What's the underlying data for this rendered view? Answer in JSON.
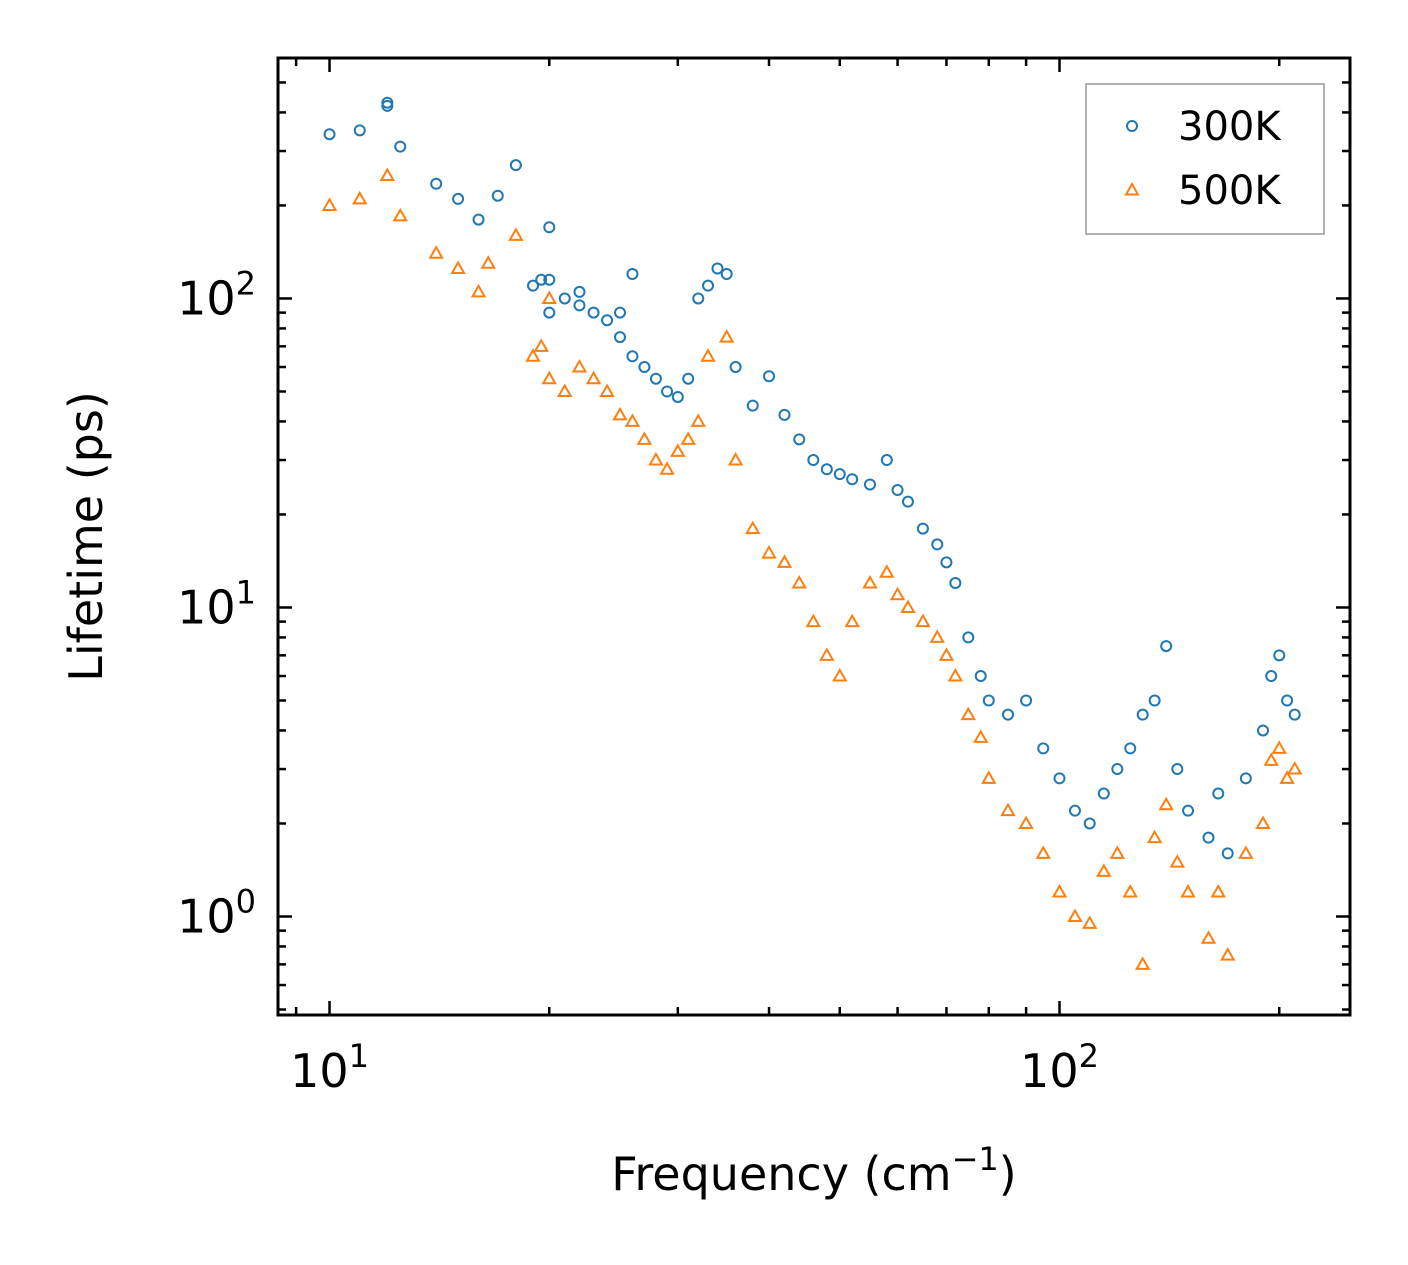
{
  "chart_data": {
    "type": "scatter",
    "title": "",
    "xlabel_base": "Frequency (cm",
    "xlabel_sup": "−1",
    "xlabel_end": ")",
    "ylabel": "Lifetime (ps)",
    "xscale": "log",
    "yscale": "log",
    "xlim": [
      8.5,
      250
    ],
    "ylim": [
      0.48,
      600
    ],
    "x_ticks": [
      {
        "value": 10,
        "base": "10",
        "exp": "1"
      },
      {
        "value": 100,
        "base": "10",
        "exp": "2"
      }
    ],
    "y_ticks": [
      {
        "value": 1,
        "base": "10",
        "exp": "0"
      },
      {
        "value": 10,
        "base": "10",
        "exp": "1"
      },
      {
        "value": 100,
        "base": "10",
        "exp": "2"
      }
    ],
    "legend_position": "top-right",
    "series": [
      {
        "name": "300K",
        "marker": "circle",
        "color": "#1f77b4",
        "points": [
          [
            10,
            340
          ],
          [
            11,
            350
          ],
          [
            12,
            430
          ],
          [
            12,
            420
          ],
          [
            12.5,
            310
          ],
          [
            14,
            235
          ],
          [
            15,
            210
          ],
          [
            16,
            180
          ],
          [
            17,
            215
          ],
          [
            18,
            270
          ],
          [
            19,
            110
          ],
          [
            20,
            170
          ],
          [
            20,
            115
          ],
          [
            19.5,
            115
          ],
          [
            20,
            90
          ],
          [
            21,
            100
          ],
          [
            22,
            105
          ],
          [
            22,
            95
          ],
          [
            23,
            90
          ],
          [
            24,
            85
          ],
          [
            25,
            75
          ],
          [
            25,
            90
          ],
          [
            26,
            120
          ],
          [
            26,
            65
          ],
          [
            27,
            60
          ],
          [
            28,
            55
          ],
          [
            29,
            50
          ],
          [
            30,
            48
          ],
          [
            31,
            55
          ],
          [
            32,
            100
          ],
          [
            33,
            110
          ],
          [
            34,
            125
          ],
          [
            35,
            120
          ],
          [
            36,
            60
          ],
          [
            38,
            45
          ],
          [
            40,
            56
          ],
          [
            42,
            42
          ],
          [
            44,
            35
          ],
          [
            46,
            30
          ],
          [
            48,
            28
          ],
          [
            50,
            27
          ],
          [
            52,
            26
          ],
          [
            55,
            25
          ],
          [
            58,
            30
          ],
          [
            60,
            24
          ],
          [
            62,
            22
          ],
          [
            65,
            18
          ],
          [
            68,
            16
          ],
          [
            70,
            14
          ],
          [
            72,
            12
          ],
          [
            75,
            8
          ],
          [
            78,
            6
          ],
          [
            80,
            5
          ],
          [
            85,
            4.5
          ],
          [
            90,
            5
          ],
          [
            95,
            3.5
          ],
          [
            100,
            2.8
          ],
          [
            105,
            2.2
          ],
          [
            110,
            2
          ],
          [
            115,
            2.5
          ],
          [
            120,
            3
          ],
          [
            125,
            3.5
          ],
          [
            130,
            4.5
          ],
          [
            135,
            5
          ],
          [
            140,
            7.5
          ],
          [
            145,
            3
          ],
          [
            150,
            2.2
          ],
          [
            160,
            1.8
          ],
          [
            165,
            2.5
          ],
          [
            170,
            1.6
          ],
          [
            180,
            2.8
          ],
          [
            190,
            4
          ],
          [
            195,
            6
          ],
          [
            200,
            7
          ],
          [
            205,
            5
          ],
          [
            210,
            4.5
          ]
        ]
      },
      {
        "name": "500K",
        "marker": "triangle",
        "color": "#ff7f0e",
        "points": [
          [
            10,
            200
          ],
          [
            11,
            210
          ],
          [
            12,
            250
          ],
          [
            12.5,
            185
          ],
          [
            14,
            140
          ],
          [
            15,
            125
          ],
          [
            16,
            105
          ],
          [
            16.5,
            130
          ],
          [
            18,
            160
          ],
          [
            19,
            65
          ],
          [
            19.5,
            70
          ],
          [
            20,
            100
          ],
          [
            20,
            55
          ],
          [
            21,
            50
          ],
          [
            22,
            60
          ],
          [
            23,
            55
          ],
          [
            24,
            50
          ],
          [
            25,
            42
          ],
          [
            26,
            40
          ],
          [
            27,
            35
          ],
          [
            28,
            30
          ],
          [
            29,
            28
          ],
          [
            30,
            32
          ],
          [
            31,
            35
          ],
          [
            32,
            40
          ],
          [
            33,
            65
          ],
          [
            35,
            75
          ],
          [
            36,
            30
          ],
          [
            38,
            18
          ],
          [
            40,
            15
          ],
          [
            42,
            14
          ],
          [
            44,
            12
          ],
          [
            46,
            9
          ],
          [
            48,
            7
          ],
          [
            50,
            6
          ],
          [
            52,
            9
          ],
          [
            55,
            12
          ],
          [
            58,
            13
          ],
          [
            60,
            11
          ],
          [
            62,
            10
          ],
          [
            65,
            9
          ],
          [
            68,
            8
          ],
          [
            70,
            7
          ],
          [
            72,
            6
          ],
          [
            75,
            4.5
          ],
          [
            78,
            3.8
          ],
          [
            80,
            2.8
          ],
          [
            85,
            2.2
          ],
          [
            90,
            2
          ],
          [
            95,
            1.6
          ],
          [
            100,
            1.2
          ],
          [
            105,
            1
          ],
          [
            110,
            0.95
          ],
          [
            115,
            1.4
          ],
          [
            120,
            1.6
          ],
          [
            125,
            1.2
          ],
          [
            130,
            0.7
          ],
          [
            135,
            1.8
          ],
          [
            140,
            2.3
          ],
          [
            145,
            1.5
          ],
          [
            150,
            1.2
          ],
          [
            160,
            0.85
          ],
          [
            165,
            1.2
          ],
          [
            170,
            0.75
          ],
          [
            180,
            1.6
          ],
          [
            190,
            2
          ],
          [
            195,
            3.2
          ],
          [
            200,
            3.5
          ],
          [
            205,
            2.8
          ],
          [
            210,
            3
          ]
        ]
      }
    ]
  }
}
